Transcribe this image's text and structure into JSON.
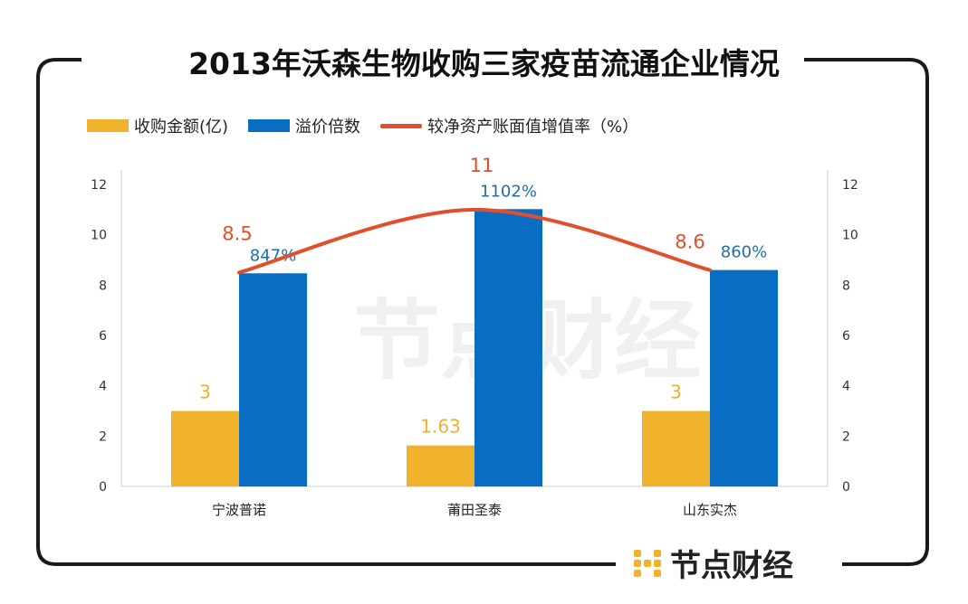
{
  "title": "2013年沃森生物收购三家疫苗流通企业情况",
  "brand": {
    "name": "节点财经",
    "watermark": "节点财经"
  },
  "colors": {
    "amount": "#F0B12B",
    "premium": "#0A6DC4",
    "growth": "#E2502B",
    "frame": "#1a1a1a"
  },
  "legend": [
    {
      "label": "收购金额(亿)",
      "type": "bar",
      "color": "#F0B12B"
    },
    {
      "label": "溢价倍数",
      "type": "bar",
      "color": "#0A6DC4"
    },
    {
      "label": "较净资产账面值增值率（%）",
      "type": "line",
      "color": "#E2502B"
    }
  ],
  "chart_data": {
    "type": "bar",
    "categories": [
      "宁波普诺",
      "莆田圣泰",
      "山东实杰"
    ],
    "series": [
      {
        "name": "收购金额(亿)",
        "type": "bar",
        "values": [
          3,
          1.63,
          3
        ],
        "labels": [
          "3",
          "1.63",
          "3"
        ]
      },
      {
        "name": "溢价倍数",
        "type": "bar",
        "values": [
          8.47,
          11.02,
          8.6
        ],
        "labels": [
          "847%",
          "1102%",
          "860%"
        ]
      },
      {
        "name": "较净资产账面值增值率（%）",
        "type": "line",
        "values": [
          8.5,
          11,
          8.6
        ],
        "labels": [
          "8.5",
          "11",
          "8.6"
        ]
      }
    ],
    "ylim": [
      0,
      12
    ],
    "yticks": [
      "0",
      "2",
      "4",
      "6",
      "8",
      "10",
      "12"
    ],
    "y2ticks": [
      "0",
      "2",
      "4",
      "6",
      "8",
      "10",
      "12"
    ],
    "legend_position": "top-left",
    "grid": false
  }
}
